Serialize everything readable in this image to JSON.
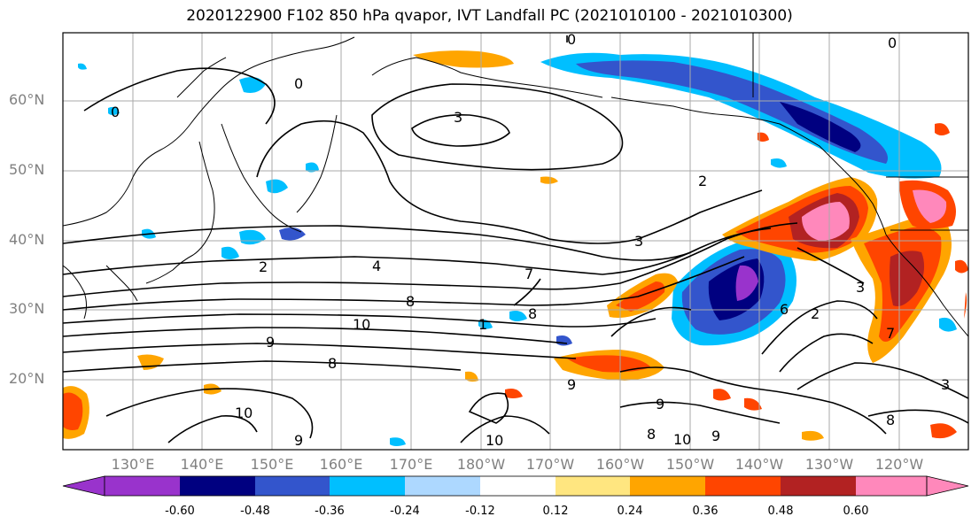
{
  "title": "2020122900 F102 850 hPa qvapor, IVT Landfall PC (2021010100 - 2021010300)",
  "lat_labels": [
    "60°N",
    "50°N",
    "40°N",
    "30°N",
    "20°N"
  ],
  "lon_labels": [
    "130°E",
    "140°E",
    "150°E",
    "160°E",
    "170°E",
    "180°W",
    "170°W",
    "160°W",
    "150°W",
    "140°W",
    "130°W",
    "120°W"
  ],
  "colorbar": {
    "labels": [
      "-0.60",
      "-0.48",
      "-0.36",
      "-0.24",
      "-0.12",
      "0.12",
      "0.24",
      "0.36",
      "0.48",
      "0.60"
    ],
    "colors": [
      "#9933cc",
      "#000080",
      "#3355cc",
      "#00bfff",
      "#add8ff",
      "#ffffff",
      "#ffe680",
      "#ffa500",
      "#ff4500",
      "#b22222",
      "#ff88bb"
    ]
  },
  "contour_labels": [
    "0",
    "0",
    "0",
    "0",
    "3",
    "2",
    "3",
    "2",
    "4",
    "7",
    "8",
    "10",
    "9",
    "8",
    "8",
    "6",
    "2",
    "3",
    "1",
    "7",
    "9",
    "10",
    "9",
    "10",
    "8",
    "9",
    "8",
    "9",
    "10",
    "3"
  ],
  "fill_colors": {
    "purple": "#9933cc",
    "navy": "#000080",
    "blue": "#3355cc",
    "cyan": "#00bfff",
    "lightblue": "#add8ff",
    "yellow": "#ffe680",
    "orange": "#ffa500",
    "red": "#ff4500",
    "darkred": "#b22222",
    "pink": "#ff88bb"
  }
}
